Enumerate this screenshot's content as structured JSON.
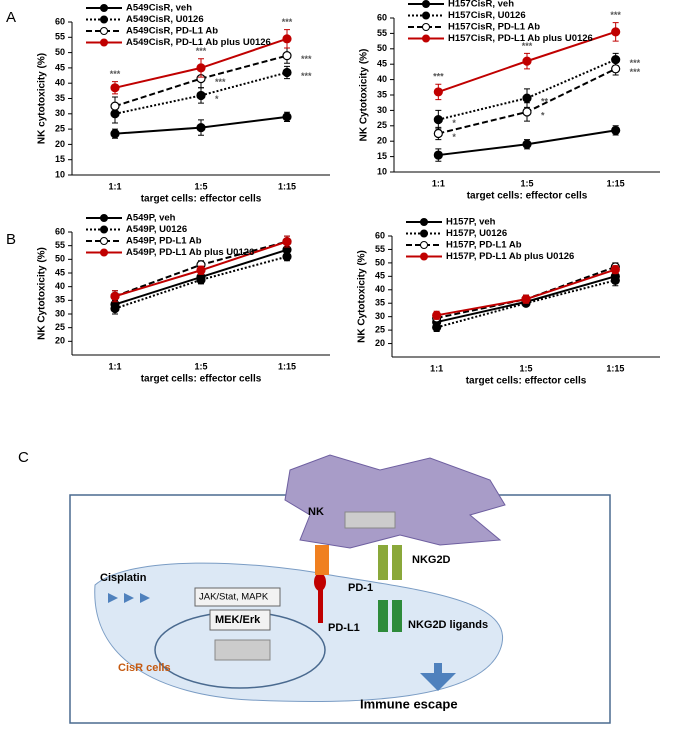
{
  "panel_labels": [
    "A",
    "B",
    "C"
  ],
  "chart_data": [
    {
      "type": "line",
      "categories": [
        "1:1",
        "1:5",
        "1:15"
      ],
      "ylim": [
        10,
        60
      ],
      "yticks": [
        10,
        15,
        20,
        25,
        30,
        35,
        40,
        45,
        50,
        55,
        60
      ],
      "y_label": "NK cytotoxicity (%)",
      "x_label": "target cells: effector cells",
      "series": [
        {
          "name": "A549CisR, veh",
          "color": "#000000",
          "dash": "solid",
          "marker": "filled",
          "values": [
            23.5,
            25.5,
            29
          ],
          "errors": [
            1.5,
            2.5,
            1.5
          ]
        },
        {
          "name": "A549CisR, U0126",
          "color": "#000000",
          "dash": "dotted",
          "marker": "filled",
          "values": [
            30,
            36,
            43.5
          ],
          "errors": [
            3,
            2.5,
            2
          ],
          "significance": [
            null,
            "*",
            "***"
          ]
        },
        {
          "name": "A549CisR, PD-L1 Ab",
          "color": "#000000",
          "dash": "dashed",
          "marker": "open",
          "values": [
            32.5,
            41.5,
            49
          ],
          "errors": [
            3,
            3,
            2.5
          ],
          "significance": [
            null,
            "***",
            "***"
          ]
        },
        {
          "name": "A549CisR, PD-L1 Ab plus U0126",
          "color": "#c00000",
          "dash": "solid",
          "marker": "filled",
          "values": [
            38.5,
            45,
            54.5
          ],
          "errors": [
            2,
            3,
            3
          ],
          "significance": [
            "***",
            "***",
            "***"
          ]
        }
      ]
    },
    {
      "type": "line",
      "categories": [
        "1:1",
        "1:5",
        "1:15"
      ],
      "ylim": [
        10,
        60
      ],
      "yticks": [
        10,
        15,
        20,
        25,
        30,
        35,
        40,
        45,
        50,
        55,
        60
      ],
      "y_label": "NK Cytotoxicity (%)",
      "x_label": "target cells: effector cells",
      "series": [
        {
          "name": "H157CisR, veh",
          "color": "#000000",
          "dash": "solid",
          "marker": "filled",
          "values": [
            15.5,
            19,
            23.5
          ],
          "errors": [
            2,
            1.5,
            1.5
          ]
        },
        {
          "name": "H157CisR, U0126",
          "color": "#000000",
          "dash": "dotted",
          "marker": "filled",
          "values": [
            27,
            34,
            46.5
          ],
          "errors": [
            3,
            3,
            2
          ],
          "significance": [
            "*",
            "**",
            "***"
          ]
        },
        {
          "name": "H157CisR, PD-L1 Ab",
          "color": "#000000",
          "dash": "dashed",
          "marker": "open",
          "values": [
            22.5,
            29.5,
            43.5
          ],
          "errors": [
            2,
            3,
            2
          ],
          "significance": [
            "*",
            "*",
            "***"
          ]
        },
        {
          "name": "H157CisR, PD-L1 Ab plus U0126",
          "color": "#c00000",
          "dash": "solid",
          "marker": "filled",
          "values": [
            36,
            46,
            55.5
          ],
          "errors": [
            2.5,
            2.5,
            3
          ],
          "significance": [
            "***",
            "***",
            "***"
          ]
        }
      ]
    },
    {
      "type": "line",
      "categories": [
        "1:1",
        "1:5",
        "1:15"
      ],
      "ylim": [
        15,
        60
      ],
      "yticks": [
        20,
        25,
        30,
        35,
        40,
        45,
        50,
        55,
        60
      ],
      "y_label": "NK Cytotoxicity (%)",
      "x_label": "target cells: effector cells",
      "series": [
        {
          "name": "A549P, veh",
          "color": "#000000",
          "dash": "solid",
          "marker": "filled",
          "values": [
            33.5,
            43.5,
            53.5
          ],
          "errors": [
            1.5,
            1.5,
            2
          ]
        },
        {
          "name": "A549P, U0126",
          "color": "#000000",
          "dash": "dotted",
          "marker": "filled",
          "values": [
            32,
            42.5,
            51
          ],
          "errors": [
            2,
            1.5,
            1.5
          ]
        },
        {
          "name": "A549P, PD-L1 Ab",
          "color": "#000000",
          "dash": "dashed",
          "marker": "open",
          "values": [
            36.5,
            48,
            56.5
          ],
          "errors": [
            2,
            1.5,
            2
          ]
        },
        {
          "name": "A549P, PD-L1 Ab plus U0126",
          "color": "#c00000",
          "dash": "solid",
          "marker": "filled",
          "values": [
            36.5,
            46,
            56.5
          ],
          "errors": [
            2,
            1.5,
            2
          ]
        }
      ]
    },
    {
      "type": "line",
      "categories": [
        "1:1",
        "1:5",
        "1:15"
      ],
      "ylim": [
        15,
        60
      ],
      "yticks": [
        20,
        25,
        30,
        35,
        40,
        45,
        50,
        55,
        60
      ],
      "y_label": "NK Cytotoxicity (%)",
      "x_label": "target cells: effector cells",
      "series": [
        {
          "name": "H157P, veh",
          "color": "#000000",
          "dash": "solid",
          "marker": "filled",
          "values": [
            28,
            35.5,
            45
          ],
          "errors": [
            2,
            1,
            2
          ]
        },
        {
          "name": "H157P, U0126",
          "color": "#000000",
          "dash": "dotted",
          "marker": "filled",
          "values": [
            26,
            35,
            43.5
          ],
          "errors": [
            1.5,
            1,
            2
          ]
        },
        {
          "name": "H157P, PD-L1 Ab",
          "color": "#000000",
          "dash": "dashed",
          "marker": "open",
          "values": [
            29.5,
            36.5,
            48.5
          ],
          "errors": [
            1.5,
            1.5,
            1.5
          ]
        },
        {
          "name": "H157P, PD-L1 Ab plus U0126",
          "color": "#c00000",
          "dash": "solid",
          "marker": "filled",
          "values": [
            30.5,
            36.5,
            47.5
          ],
          "errors": [
            1.5,
            1.5,
            1.5
          ]
        }
      ]
    }
  ],
  "diagram": {
    "nk": "NK",
    "cisplatin": "Cisplatin",
    "jak": "JAK/Stat, MAPK",
    "mek": "MEK/Erk",
    "pd1": "PD-1",
    "pdl1": "PD-L1",
    "nkg2d": "NKG2D",
    "ligands": "NKG2D ligands",
    "cisr": "CisR cells",
    "escape": "Immune escape"
  }
}
